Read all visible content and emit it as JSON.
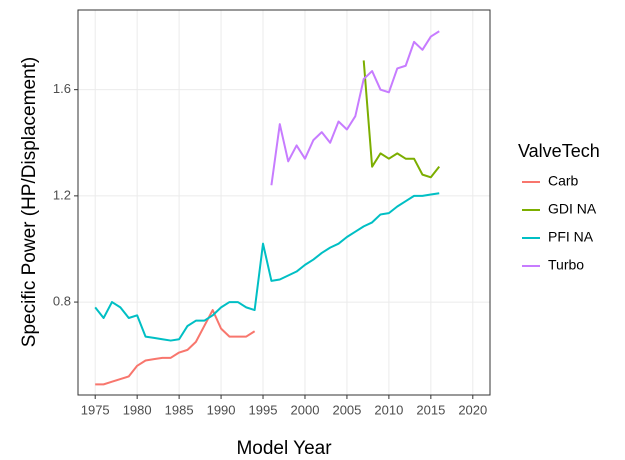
{
  "chart_data": {
    "type": "line",
    "x_label": "Model Year",
    "y_label": "Specific Power (HP/Displacement)",
    "legend_title": "ValveTech",
    "x": [
      1975,
      1976,
      1977,
      1978,
      1979,
      1980,
      1981,
      1982,
      1983,
      1984,
      1985,
      1986,
      1987,
      1988,
      1989,
      1990,
      1991,
      1992,
      1993,
      1994,
      1995,
      1996,
      1997,
      1998,
      1999,
      2000,
      2001,
      2002,
      2003,
      2004,
      2005,
      2006,
      2007,
      2008,
      2009,
      2010,
      2011,
      2012,
      2013,
      2014,
      2015,
      2016
    ],
    "series": [
      {
        "name": "Carb",
        "color": "#F8766D",
        "values": [
          0.49,
          0.49,
          0.5,
          0.51,
          0.52,
          0.56,
          0.58,
          0.585,
          0.59,
          0.59,
          0.61,
          0.62,
          0.65,
          0.71,
          0.77,
          0.7,
          0.67,
          0.67,
          0.67,
          0.69,
          null,
          null,
          null,
          null,
          null,
          null,
          null,
          null,
          null,
          null,
          null,
          null,
          null,
          null,
          null,
          null,
          null,
          null,
          null,
          null,
          null,
          null
        ]
      },
      {
        "name": "GDI NA",
        "color": "#7CAE00",
        "values": [
          null,
          null,
          null,
          null,
          null,
          null,
          null,
          null,
          null,
          null,
          null,
          null,
          null,
          null,
          null,
          null,
          null,
          null,
          null,
          null,
          null,
          null,
          null,
          null,
          null,
          null,
          null,
          null,
          null,
          null,
          null,
          null,
          1.71,
          1.31,
          1.36,
          1.34,
          1.36,
          1.34,
          1.34,
          1.28,
          1.27,
          1.31
        ]
      },
      {
        "name": "PFI NA",
        "color": "#00BFC4",
        "values": [
          0.78,
          0.74,
          0.8,
          0.78,
          0.74,
          0.75,
          0.67,
          0.665,
          0.66,
          0.655,
          0.66,
          0.71,
          0.73,
          0.73,
          0.75,
          0.78,
          0.8,
          0.8,
          0.78,
          0.77,
          1.02,
          0.88,
          0.885,
          0.9,
          0.915,
          0.94,
          0.96,
          0.985,
          1.005,
          1.02,
          1.045,
          1.065,
          1.085,
          1.1,
          1.13,
          1.135,
          1.16,
          1.18,
          1.2,
          1.2,
          1.205,
          1.21
        ]
      },
      {
        "name": "Turbo",
        "color": "#C77CFF",
        "values": [
          null,
          null,
          null,
          null,
          null,
          null,
          null,
          null,
          null,
          null,
          null,
          null,
          null,
          null,
          null,
          null,
          null,
          null,
          null,
          null,
          null,
          1.24,
          1.47,
          1.33,
          1.39,
          1.34,
          1.41,
          1.44,
          1.4,
          1.48,
          1.45,
          1.5,
          1.64,
          1.67,
          1.6,
          1.59,
          1.68,
          1.69,
          1.78,
          1.75,
          1.8,
          1.82
        ]
      }
    ],
    "xlim": [
      1972.95,
      2022.05
    ],
    "xticks": [
      1975,
      1980,
      1985,
      1990,
      1995,
      2000,
      2005,
      2010,
      2015,
      2020
    ],
    "ylim": [
      0.45,
      1.9
    ],
    "yticks": [
      0.8,
      1.2,
      1.6
    ],
    "grid": true,
    "legend": "right"
  }
}
